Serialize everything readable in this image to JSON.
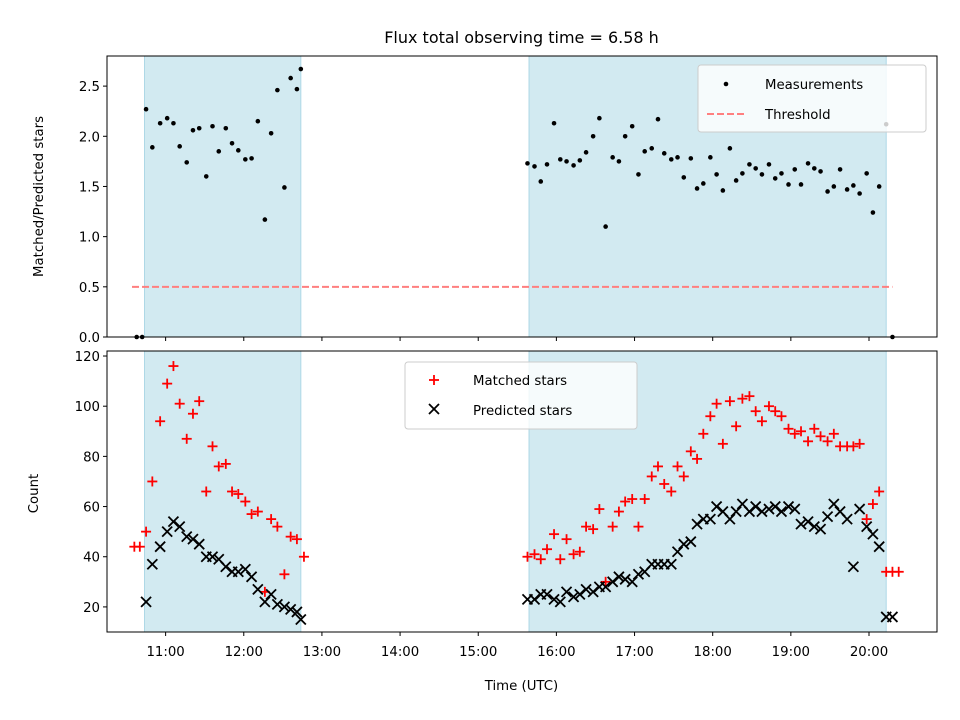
{
  "figure": {
    "title": "Flux total observing time = 6.58 h"
  },
  "chart_data": [
    {
      "type": "scatter",
      "ylabel": "Matched/Predicted stars",
      "xlim": [
        10.25,
        20.87
      ],
      "ylim": [
        0,
        2.8
      ],
      "yticks": [
        "0.0",
        "0.5",
        "1.0",
        "1.5",
        "2.0",
        "2.5"
      ],
      "shaded_intervals": [
        [
          10.73,
          12.73
        ],
        [
          15.65,
          20.22
        ]
      ],
      "shade_color": "#add8e6",
      "threshold": {
        "name": "Threshold",
        "value": 0.5,
        "x_range": [
          10.57,
          20.3
        ],
        "color": "#ff7f7f"
      },
      "series": [
        {
          "name": "Measurements",
          "color": "#000000",
          "x": [
            10.63,
            10.7,
            10.75,
            10.83,
            10.93,
            11.02,
            11.1,
            11.18,
            11.27,
            11.35,
            11.43,
            11.52,
            11.6,
            11.68,
            11.77,
            11.85,
            11.93,
            12.02,
            12.1,
            12.18,
            12.27,
            12.35,
            12.43,
            12.52,
            12.6,
            12.68,
            12.73,
            15.63,
            15.72,
            15.8,
            15.88,
            15.97,
            16.05,
            16.13,
            16.22,
            16.3,
            16.38,
            16.47,
            16.55,
            16.63,
            16.72,
            16.8,
            16.88,
            16.97,
            17.05,
            17.13,
            17.22,
            17.3,
            17.38,
            17.47,
            17.55,
            17.63,
            17.72,
            17.8,
            17.88,
            17.97,
            18.05,
            18.13,
            18.22,
            18.3,
            18.38,
            18.47,
            18.55,
            18.63,
            18.72,
            18.8,
            18.88,
            18.97,
            19.05,
            19.13,
            19.22,
            19.3,
            19.38,
            19.47,
            19.55,
            19.63,
            19.72,
            19.8,
            19.88,
            19.97,
            20.05,
            20.13,
            20.22,
            20.3
          ],
          "y": [
            0.0,
            0.0,
            2.27,
            1.89,
            2.13,
            2.18,
            2.13,
            1.9,
            1.74,
            2.06,
            2.08,
            1.6,
            2.1,
            1.85,
            2.08,
            1.93,
            1.86,
            1.77,
            1.78,
            2.15,
            1.17,
            2.03,
            2.46,
            1.49,
            2.58,
            2.47,
            2.67,
            1.73,
            1.7,
            1.55,
            1.72,
            2.13,
            1.77,
            1.75,
            1.71,
            1.76,
            1.84,
            2.0,
            2.18,
            1.1,
            1.79,
            1.75,
            2.0,
            2.1,
            1.62,
            1.85,
            1.88,
            2.17,
            1.83,
            1.77,
            1.79,
            1.59,
            1.78,
            1.48,
            1.53,
            1.79,
            1.62,
            1.46,
            1.88,
            1.56,
            1.63,
            1.72,
            1.68,
            1.62,
            1.72,
            1.58,
            1.63,
            1.52,
            1.67,
            1.52,
            1.73,
            1.68,
            1.65,
            1.45,
            1.5,
            1.67,
            1.47,
            1.51,
            1.43,
            1.63,
            1.24,
            1.5,
            2.12,
            0.0
          ]
        }
      ]
    },
    {
      "type": "scatter",
      "xlabel": "Time (UTC)",
      "ylabel": "Count",
      "xlim": [
        10.25,
        20.87
      ],
      "ylim": [
        10,
        122
      ],
      "xticks": [
        {
          "value": 11,
          "label": "11:00"
        },
        {
          "value": 12,
          "label": "12:00"
        },
        {
          "value": 13,
          "label": "13:00"
        },
        {
          "value": 14,
          "label": "14:00"
        },
        {
          "value": 15,
          "label": "15:00"
        },
        {
          "value": 16,
          "label": "16:00"
        },
        {
          "value": 17,
          "label": "17:00"
        },
        {
          "value": 18,
          "label": "18:00"
        },
        {
          "value": 19,
          "label": "19:00"
        },
        {
          "value": 20,
          "label": "20:00"
        }
      ],
      "yticks": [
        "20",
        "40",
        "60",
        "80",
        "100",
        "120"
      ],
      "shaded_intervals": [
        [
          10.73,
          12.73
        ],
        [
          15.65,
          20.22
        ]
      ],
      "shade_color": "#add8e6",
      "series": [
        {
          "name": "Matched stars",
          "marker": "plus",
          "color": "#ff0000",
          "x": [
            10.6,
            10.67,
            10.75,
            10.83,
            10.93,
            11.02,
            11.1,
            11.18,
            11.27,
            11.35,
            11.43,
            11.52,
            11.6,
            11.68,
            11.77,
            11.85,
            11.93,
            12.02,
            12.1,
            12.18,
            12.27,
            12.35,
            12.43,
            12.52,
            12.6,
            12.68,
            12.77,
            15.63,
            15.72,
            15.8,
            15.88,
            15.97,
            16.05,
            16.13,
            16.22,
            16.3,
            16.38,
            16.47,
            16.55,
            16.63,
            16.72,
            16.8,
            16.88,
            16.97,
            17.05,
            17.13,
            17.22,
            17.3,
            17.38,
            17.47,
            17.55,
            17.63,
            17.72,
            17.8,
            17.88,
            17.97,
            18.05,
            18.13,
            18.22,
            18.3,
            18.38,
            18.47,
            18.55,
            18.63,
            18.72,
            18.8,
            18.88,
            18.97,
            19.05,
            19.13,
            19.22,
            19.3,
            19.38,
            19.47,
            19.55,
            19.63,
            19.72,
            19.8,
            19.88,
            19.97,
            20.05,
            20.13,
            20.22,
            20.3,
            20.38
          ],
          "y": [
            44,
            44,
            50,
            70,
            94,
            109,
            116,
            101,
            87,
            97,
            102,
            66,
            84,
            76,
            77,
            66,
            65,
            62,
            57,
            58,
            26,
            55,
            52,
            33,
            48,
            47,
            40,
            40,
            41,
            39,
            43,
            49,
            39,
            47,
            41,
            42,
            52,
            51,
            59,
            30,
            52,
            58,
            62,
            63,
            52,
            63,
            72,
            76,
            69,
            66,
            76,
            72,
            82,
            79,
            89,
            96,
            101,
            85,
            102,
            92,
            103,
            104,
            98,
            94,
            100,
            98,
            96,
            91,
            89,
            90,
            86,
            91,
            88,
            86,
            89,
            84,
            84,
            84,
            85,
            55,
            61,
            66,
            34,
            34,
            34
          ]
        },
        {
          "name": "Predicted stars",
          "marker": "x",
          "color": "#000000",
          "x": [
            10.75,
            10.83,
            10.93,
            11.02,
            11.1,
            11.18,
            11.27,
            11.35,
            11.43,
            11.52,
            11.6,
            11.68,
            11.77,
            11.85,
            11.93,
            12.02,
            12.1,
            12.18,
            12.27,
            12.35,
            12.43,
            12.52,
            12.6,
            12.68,
            12.73,
            15.63,
            15.72,
            15.8,
            15.88,
            15.97,
            16.05,
            16.13,
            16.22,
            16.3,
            16.38,
            16.47,
            16.55,
            16.63,
            16.72,
            16.8,
            16.88,
            16.97,
            17.05,
            17.13,
            17.22,
            17.3,
            17.38,
            17.47,
            17.55,
            17.63,
            17.72,
            17.8,
            17.88,
            17.97,
            18.05,
            18.13,
            18.22,
            18.3,
            18.38,
            18.47,
            18.55,
            18.63,
            18.72,
            18.8,
            18.88,
            18.97,
            19.05,
            19.13,
            19.22,
            19.3,
            19.38,
            19.47,
            19.55,
            19.63,
            19.72,
            19.8,
            19.88,
            19.97,
            20.05,
            20.13,
            20.22,
            20.3
          ],
          "y": [
            22,
            37,
            44,
            50,
            54,
            52,
            48,
            47,
            45,
            40,
            40,
            39,
            36,
            34,
            34,
            35,
            32,
            27,
            22,
            25,
            21,
            20,
            19,
            18,
            15,
            23,
            23,
            25,
            25,
            23,
            22,
            26,
            24,
            25,
            27,
            26,
            28,
            28,
            30,
            32,
            31,
            30,
            33,
            34,
            37,
            37,
            37,
            37,
            42,
            45,
            46,
            53,
            55,
            55,
            60,
            58,
            55,
            58,
            61,
            58,
            60,
            58,
            59,
            60,
            58,
            60,
            59,
            53,
            54,
            52,
            51,
            56,
            61,
            58,
            55,
            36,
            59,
            52,
            49,
            44,
            16,
            16
          ]
        }
      ]
    }
  ]
}
